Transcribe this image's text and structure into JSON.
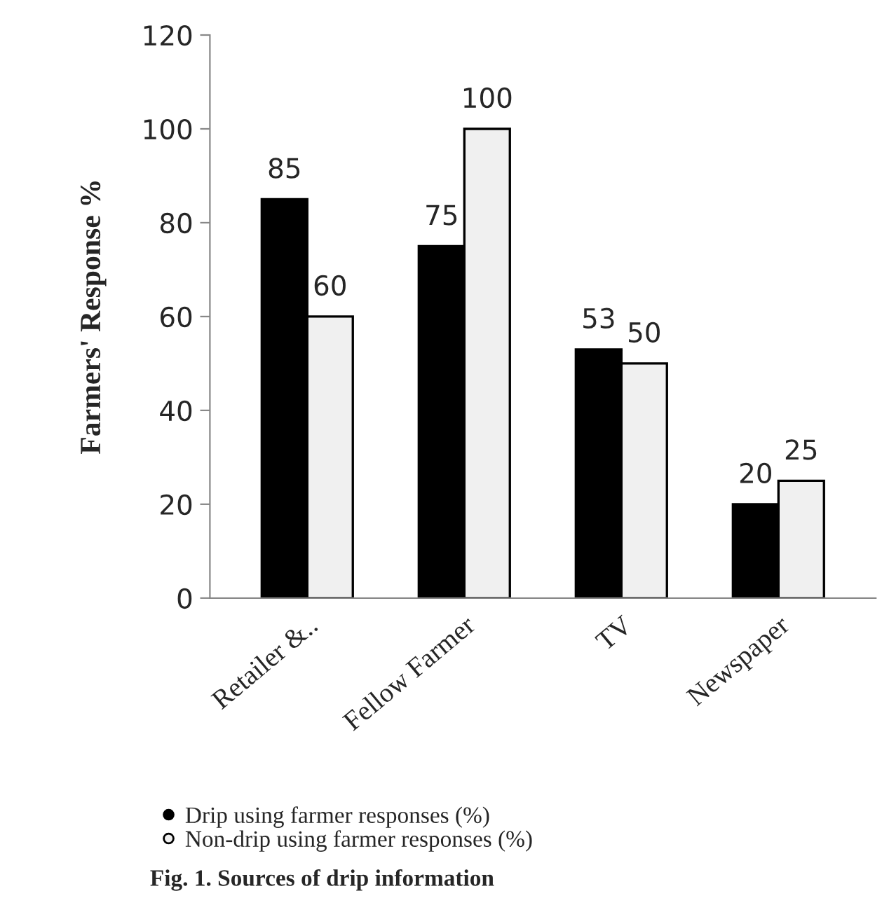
{
  "chart_data": {
    "type": "bar",
    "ylabel": "Farmers' Response %",
    "categories": [
      "Retailer &..",
      "Fellow Farmer",
      "TV",
      "Newspaper"
    ],
    "series": [
      {
        "name": "Drip using farmer responses (%)",
        "color": "#000000",
        "values": [
          85,
          75,
          53,
          20
        ]
      },
      {
        "name": "Non-drip using farmer responses (%)",
        "color": "#f0f0f0",
        "values": [
          60,
          100,
          50,
          25
        ]
      }
    ],
    "ylim": [
      0,
      120
    ],
    "yticks": [
      0,
      20,
      40,
      60,
      80,
      100,
      120
    ],
    "data_labels": true,
    "grid": false,
    "legend": "bottom",
    "annotations": [
      "Fig. 1. Sources of drip information"
    ]
  }
}
